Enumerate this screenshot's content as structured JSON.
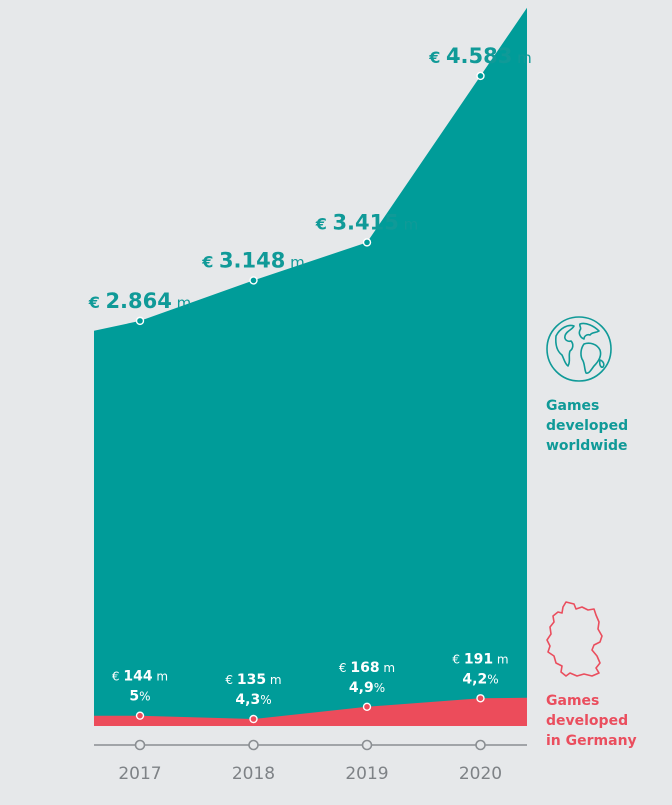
{
  "colors": {
    "world": "#009C99",
    "germany": "#EC4C5B",
    "label_world": "#109A98",
    "label_germany": "#FFFFFF",
    "axis": "#8A8E92",
    "background": "#E6E8EA"
  },
  "chart_data": {
    "type": "area",
    "categories": [
      "2017",
      "2018",
      "2019",
      "2020"
    ],
    "series": [
      {
        "name": "Games developed worldwide",
        "values": [
          2864,
          3148,
          3415,
          4583
        ],
        "labels": [
          {
            "currency": "€",
            "value": "2.864",
            "unit": "m"
          },
          {
            "currency": "€",
            "value": "3.148",
            "unit": "m"
          },
          {
            "currency": "€",
            "value": "3.415",
            "unit": "m"
          },
          {
            "currency": "€",
            "value": "4.583",
            "unit": "m"
          }
        ]
      },
      {
        "name": "Games developed in Germany",
        "values": [
          144,
          135,
          168,
          191
        ],
        "labels": [
          {
            "currency": "€",
            "value": "144",
            "unit": "m",
            "share": "5",
            "share_unit": "%"
          },
          {
            "currency": "€",
            "value": "135",
            "unit": "m",
            "share": "4,3",
            "share_unit": "%"
          },
          {
            "currency": "€",
            "value": "168",
            "unit": "m",
            "share": "4,9",
            "share_unit": "%"
          },
          {
            "currency": "€",
            "value": "191",
            "unit": "m",
            "share": "4,2",
            "share_unit": "%"
          }
        ]
      }
    ],
    "ylim": [
      0,
      4800
    ],
    "grid": false
  },
  "legend": {
    "world": [
      "Games",
      "developed",
      "worldwide"
    ],
    "germany": [
      "Games",
      "developed",
      "in Germany"
    ],
    "world_icon": "globe-icon",
    "germany_icon": "germany-map-icon"
  }
}
